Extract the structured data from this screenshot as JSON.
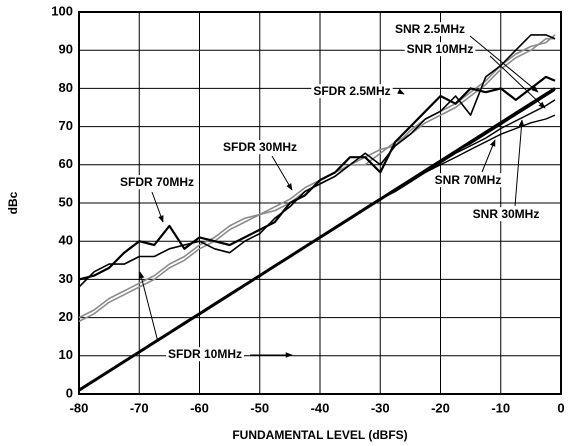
{
  "chart_data": {
    "type": "line",
    "xlabel": "FUNDAMENTAL LEVEL (dBFS)",
    "ylabel": "dBc",
    "x": [
      -80,
      -77.5,
      -75,
      -72.5,
      -70,
      -67.5,
      -65,
      -62.5,
      -60,
      -57.5,
      -55,
      -52.5,
      -50,
      -47.5,
      -45,
      -42.5,
      -40,
      -37.5,
      -35,
      -32.5,
      -30,
      -27.5,
      -25,
      -22.5,
      -20,
      -17.5,
      -15,
      -12.5,
      -10,
      -7.5,
      -5,
      -2.5,
      -1
    ],
    "series": [
      {
        "name": "SFDR 10MHz",
        "color": "#8c8c8c",
        "values": [
          19,
          21,
          24,
          26,
          28,
          30,
          33,
          35,
          38,
          40,
          43,
          45,
          47,
          48,
          50,
          53,
          55,
          57,
          60,
          60,
          63,
          66,
          68,
          71,
          73,
          75,
          78,
          81,
          85,
          88,
          90,
          93,
          93
        ]
      },
      {
        "name": "SFDR 2.5MHz",
        "color": "#8c8c8c",
        "values": [
          20,
          22,
          25,
          27,
          29,
          31,
          34,
          36,
          39,
          41,
          44,
          46,
          47,
          49,
          51,
          54,
          56,
          58,
          60,
          62,
          64,
          65,
          69,
          72,
          74,
          76,
          79,
          82,
          86,
          89,
          91,
          92,
          94
        ]
      },
      {
        "name": "SFDR 70MHz",
        "color": "#000000",
        "values": [
          30,
          31,
          33,
          37,
          40,
          39,
          44,
          38,
          41,
          40,
          39,
          41,
          43,
          45,
          50,
          52,
          56,
          58,
          62,
          62,
          58,
          66,
          70,
          74,
          78,
          76,
          80,
          79,
          80,
          77,
          80,
          83,
          82
        ]
      },
      {
        "name": "SFDR 30MHz",
        "color": "#000000",
        "values": [
          28,
          32,
          34,
          34,
          36,
          36,
          38,
          39,
          40,
          38,
          37,
          40,
          42,
          46,
          49,
          53,
          55,
          57,
          60,
          63,
          60,
          65,
          68,
          72,
          74,
          78,
          73,
          83,
          86,
          90,
          94,
          94,
          93
        ]
      },
      {
        "name": "SNR 2.5MHz",
        "color": "#000000",
        "values": [
          1,
          3.5,
          6,
          8.5,
          11,
          13.5,
          16,
          18.5,
          21,
          23.5,
          26,
          28.5,
          31,
          33.5,
          36,
          38.5,
          41,
          43.5,
          46,
          48.5,
          51,
          53.5,
          56,
          58.5,
          61,
          63.5,
          66,
          68.5,
          71,
          73.5,
          76,
          78.5,
          80
        ]
      },
      {
        "name": "SNR 10MHz",
        "color": "#000000",
        "values": [
          1,
          3.5,
          6,
          8.5,
          11,
          13.5,
          16,
          18.5,
          21,
          23.5,
          26,
          28.5,
          31,
          33.5,
          36,
          38.5,
          41,
          43.5,
          46,
          48.5,
          51,
          53.5,
          56,
          58.5,
          61,
          63.5,
          65.5,
          68,
          70.5,
          73,
          75.5,
          78,
          79.5
        ]
      },
      {
        "name": "SNR 30MHz",
        "color": "#000000",
        "values": [
          1,
          3.5,
          6,
          8.5,
          11,
          13.5,
          16,
          18.5,
          21,
          23.5,
          26,
          28.5,
          31,
          33.5,
          36,
          38.5,
          41,
          43.5,
          46,
          48.5,
          51,
          53.5,
          56,
          58,
          60.5,
          63,
          65,
          67,
          69.5,
          71.5,
          73.5,
          75.5,
          77
        ]
      },
      {
        "name": "SNR 70MHz",
        "color": "#000000",
        "values": [
          1,
          3.5,
          6,
          8.5,
          11,
          13.5,
          16,
          18.5,
          21,
          23.5,
          26,
          28.5,
          31,
          33.5,
          36,
          38.5,
          41,
          43.5,
          46,
          48.5,
          51,
          53,
          55.5,
          58,
          60,
          62,
          64,
          66,
          68,
          69.5,
          71,
          72,
          73
        ]
      }
    ],
    "xlim": [
      -80,
      0
    ],
    "xticks": [
      -80,
      -70,
      -60,
      -50,
      -40,
      -30,
      -20,
      -10,
      0
    ],
    "ylim": [
      0,
      100
    ],
    "yticks": [
      0,
      10,
      20,
      30,
      40,
      50,
      60,
      70,
      80,
      90,
      100
    ],
    "grid": true
  }
}
